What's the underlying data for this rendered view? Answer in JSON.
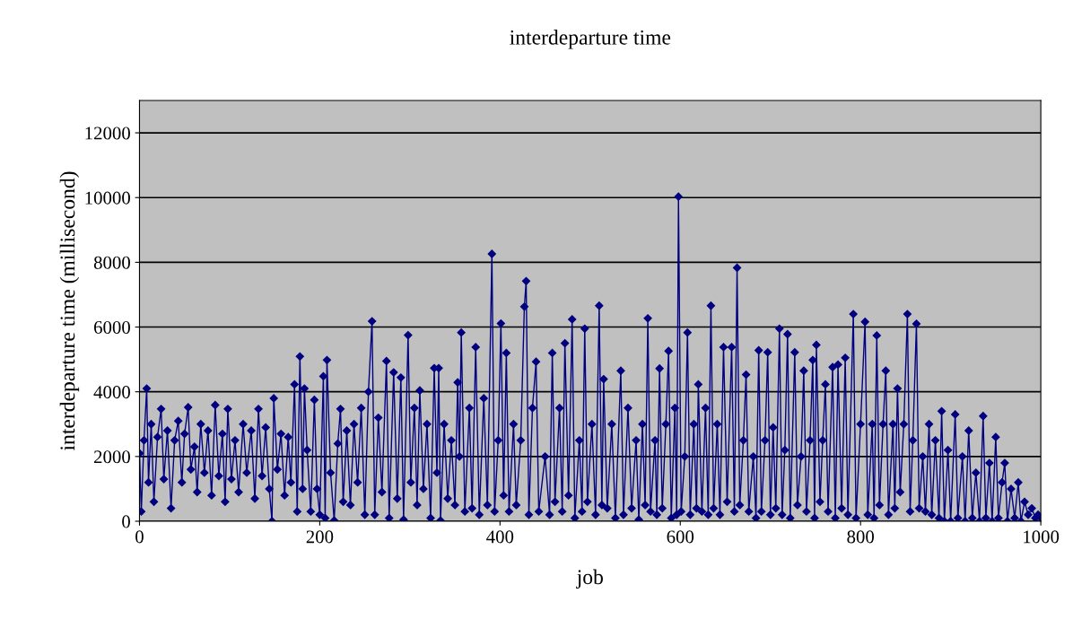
{
  "chart_data": {
    "type": "line",
    "title": "interdeparture time",
    "xlabel": "job",
    "ylabel": "interdeparture time (millisecond)",
    "xlim": [
      0,
      1000
    ],
    "xticks": [
      0,
      200,
      400,
      600,
      800,
      1000
    ],
    "ylim": [
      0,
      13000
    ],
    "yticks": [
      0,
      2000,
      4000,
      6000,
      8000,
      10000,
      12000
    ],
    "grid": "y",
    "marker": "diamond",
    "line_style": "solid",
    "legend": false,
    "series": [
      {
        "color": "#000080",
        "x": [
          0,
          2,
          5,
          8,
          10,
          13,
          16,
          20,
          24,
          27,
          31,
          35,
          39,
          43,
          47,
          50,
          54,
          57,
          61,
          64,
          68,
          72,
          76,
          80,
          84,
          88,
          92,
          95,
          98,
          102,
          106,
          110,
          115,
          119,
          124,
          128,
          132,
          136,
          140,
          144,
          147,
          149,
          153,
          157,
          161,
          165,
          168,
          172,
          175,
          178,
          181,
          183,
          186,
          190,
          194,
          197,
          200,
          204,
          206,
          208,
          212,
          216,
          220,
          223,
          226,
          230,
          234,
          238,
          242,
          246,
          250,
          254,
          258,
          261,
          265,
          269,
          274,
          277,
          282,
          286,
          290,
          293,
          298,
          301,
          305,
          308,
          311,
          315,
          319,
          323,
          327,
          330,
          332,
          334,
          338,
          342,
          346,
          350,
          353,
          355,
          357,
          361,
          366,
          369,
          373,
          377,
          382,
          386,
          391,
          394,
          398,
          401,
          404,
          407,
          410,
          415,
          418,
          423,
          427,
          429,
          432,
          436,
          440,
          443,
          450,
          455,
          458,
          461,
          466,
          469,
          472,
          476,
          480,
          483,
          488,
          491,
          494,
          497,
          502,
          506,
          510,
          513,
          515,
          519,
          524,
          528,
          534,
          537,
          542,
          546,
          551,
          554,
          558,
          561,
          564,
          567,
          572,
          574,
          577,
          580,
          584,
          587,
          590,
          594,
          596,
          598,
          601,
          605,
          608,
          611,
          615,
          618,
          620,
          624,
          628,
          631,
          634,
          637,
          641,
          644,
          648,
          652,
          657,
          660,
          663,
          666,
          670,
          673,
          676,
          681,
          684,
          687,
          690,
          694,
          697,
          700,
          703,
          706,
          710,
          713,
          716,
          719,
          722,
          727,
          730,
          734,
          737,
          740,
          744,
          747,
          749,
          751,
          755,
          758,
          761,
          764,
          769,
          772,
          775,
          779,
          783,
          786,
          792,
          795,
          800,
          805,
          808,
          813,
          815,
          818,
          821,
          825,
          828,
          831,
          836,
          838,
          841,
          844,
          848,
          852,
          855,
          858,
          862,
          865,
          869,
          872,
          876,
          879,
          883,
          887,
          890,
          893,
          897,
          900,
          905,
          908,
          913,
          916,
          920,
          924,
          928,
          932,
          936,
          939,
          943,
          946,
          950,
          953,
          957,
          960,
          963,
          967,
          971,
          975,
          978,
          982,
          986,
          990,
          994,
          997,
          1000
        ],
        "values": [
          2100,
          300,
          2500,
          4100,
          1200,
          3000,
          600,
          2600,
          3470,
          1300,
          2800,
          400,
          2500,
          3100,
          1200,
          2700,
          3520,
          1600,
          2300,
          900,
          3000,
          1500,
          2800,
          800,
          3590,
          1400,
          2700,
          600,
          3470,
          1300,
          2500,
          900,
          3000,
          1500,
          2800,
          700,
          3470,
          1400,
          2900,
          1000,
          0,
          3800,
          1600,
          2700,
          800,
          2600,
          1200,
          4230,
          300,
          5090,
          1000,
          4100,
          2200,
          300,
          3750,
          1000,
          200,
          4480,
          100,
          4980,
          1500,
          20,
          2400,
          3470,
          600,
          2800,
          500,
          3000,
          1200,
          3500,
          200,
          4000,
          6180,
          200,
          3200,
          900,
          4950,
          100,
          4600,
          700,
          4440,
          50,
          5750,
          1200,
          3500,
          500,
          4040,
          1000,
          3000,
          100,
          4730,
          1500,
          4730,
          20,
          3000,
          700,
          2500,
          500,
          4290,
          2000,
          5830,
          300,
          3500,
          400,
          5380,
          200,
          3800,
          500,
          8260,
          300,
          2500,
          6110,
          800,
          5200,
          300,
          3000,
          500,
          2500,
          6630,
          7420,
          200,
          3500,
          4930,
          300,
          2000,
          200,
          5200,
          600,
          3500,
          300,
          5500,
          800,
          6240,
          100,
          2500,
          300,
          5950,
          600,
          3000,
          200,
          6660,
          500,
          4390,
          400,
          3000,
          100,
          4650,
          200,
          3500,
          400,
          2500,
          50,
          3000,
          500,
          6270,
          300,
          2500,
          200,
          4720,
          400,
          3000,
          5260,
          100,
          3500,
          200,
          10030,
          300,
          2000,
          5830,
          200,
          3000,
          400,
          4230,
          300,
          3500,
          200,
          6660,
          400,
          3000,
          200,
          5380,
          600,
          5380,
          300,
          7830,
          500,
          2500,
          4530,
          300,
          2000,
          100,
          5280,
          300,
          2500,
          5220,
          200,
          2900,
          400,
          5950,
          200,
          2200,
          5780,
          100,
          5220,
          500,
          2000,
          4650,
          300,
          2500,
          4980,
          100,
          5450,
          600,
          2500,
          4230,
          300,
          4760,
          100,
          4840,
          400,
          5050,
          200,
          6400,
          100,
          3000,
          6160,
          200,
          3000,
          100,
          5740,
          500,
          3000,
          4650,
          200,
          3000,
          400,
          4100,
          900,
          3000,
          6400,
          300,
          2500,
          6100,
          400,
          2000,
          300,
          3000,
          200,
          2500,
          100,
          3400,
          0,
          2200,
          0,
          3300,
          100,
          2000,
          0,
          2800,
          100,
          1500,
          0,
          3250,
          100,
          1800,
          0,
          2600,
          100,
          1200,
          1800,
          0,
          1000,
          100,
          1200,
          0,
          600,
          200,
          400,
          100,
          200,
          100
        ]
      }
    ]
  }
}
